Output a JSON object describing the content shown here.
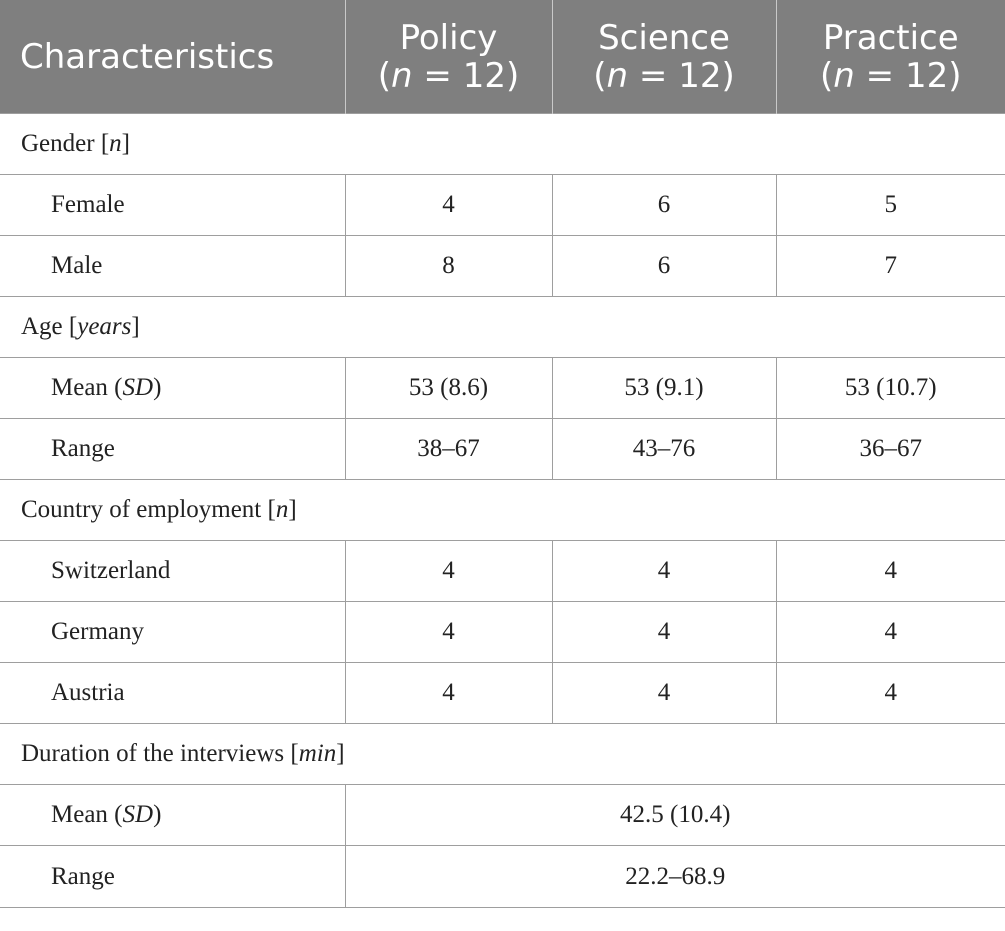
{
  "header": {
    "characteristics": "Characteristics",
    "columns": [
      {
        "label": "Policy",
        "n_var": "n",
        "n_val": " = 12"
      },
      {
        "label": "Science",
        "n_var": "n",
        "n_val": " = 12"
      },
      {
        "label": "Practice",
        "n_var": "n",
        "n_val": " = 12"
      }
    ]
  },
  "gender": {
    "title": "Gender [",
    "unit": "n",
    "close": "]",
    "female": {
      "label": "Female",
      "values": [
        "4",
        "6",
        "5"
      ]
    },
    "male": {
      "label": "Male",
      "values": [
        "8",
        "6",
        "7"
      ]
    }
  },
  "age": {
    "title": "Age [",
    "unit": "years",
    "close": "]",
    "mean": {
      "label": "Mean (",
      "label_it": "SD",
      "label_close": ")",
      "values": [
        "53 (8.6)",
        "53 (9.1)",
        "53 (10.7)"
      ]
    },
    "range": {
      "label": "Range",
      "values": [
        "38–67",
        "43–76",
        "36–67"
      ]
    }
  },
  "country": {
    "title": "Country of employment [",
    "unit": "n",
    "close": "]",
    "switzerland": {
      "label": "Switzerland",
      "values": [
        "4",
        "4",
        "4"
      ]
    },
    "germany": {
      "label": "Germany",
      "values": [
        "4",
        "4",
        "4"
      ]
    },
    "austria": {
      "label": "Austria",
      "values": [
        "4",
        "4",
        "4"
      ]
    }
  },
  "duration": {
    "title": "Duration of the interviews [",
    "unit": "min",
    "close": "]",
    "mean": {
      "label": "Mean (",
      "label_it": "SD",
      "label_close": ")",
      "value": "42.5 (10.4)"
    },
    "range": {
      "label": "Range",
      "value": "22.2–68.9"
    }
  }
}
